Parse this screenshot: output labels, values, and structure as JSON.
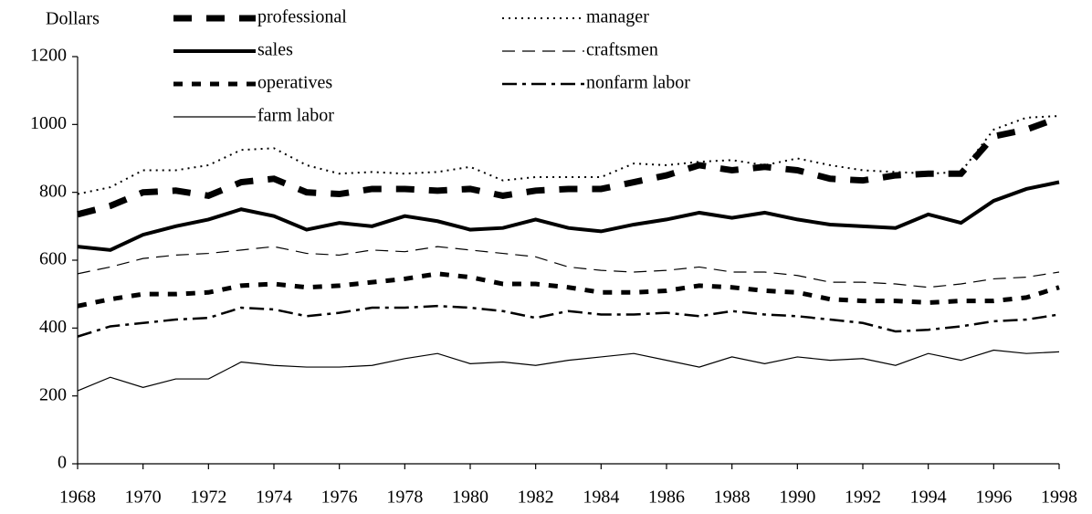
{
  "chart_data": {
    "type": "line",
    "y_label": "Dollars",
    "x": [
      1968,
      1969,
      1970,
      1971,
      1972,
      1973,
      1974,
      1975,
      1976,
      1977,
      1978,
      1979,
      1980,
      1981,
      1982,
      1983,
      1984,
      1985,
      1986,
      1987,
      1988,
      1989,
      1990,
      1991,
      1992,
      1993,
      1994,
      1995,
      1996,
      1997,
      1998
    ],
    "xlim": [
      1968,
      1998
    ],
    "xticks": [
      1968,
      1970,
      1972,
      1974,
      1976,
      1978,
      1980,
      1982,
      1984,
      1986,
      1988,
      1990,
      1992,
      1994,
      1996,
      1998
    ],
    "ylim": [
      0,
      1200
    ],
    "yticks": [
      0,
      200,
      400,
      600,
      800,
      1000,
      1200
    ],
    "grid": false,
    "series": [
      {
        "name": "professional",
        "color": "#000",
        "width": 7,
        "dash": "20 16",
        "values": [
          735,
          760,
          800,
          805,
          790,
          830,
          840,
          800,
          795,
          810,
          810,
          805,
          810,
          790,
          805,
          810,
          810,
          830,
          850,
          880,
          865,
          875,
          865,
          840,
          835,
          850,
          855,
          855,
          965,
          985,
          1020
        ]
      },
      {
        "name": "manager",
        "color": "#000",
        "width": 2,
        "dash": "2 5",
        "values": [
          795,
          815,
          865,
          865,
          880,
          925,
          930,
          880,
          855,
          860,
          855,
          860,
          875,
          835,
          845,
          845,
          845,
          885,
          880,
          890,
          895,
          880,
          900,
          880,
          865,
          860,
          855,
          860,
          985,
          1020,
          1025
        ]
      },
      {
        "name": "sales",
        "color": "#000",
        "width": 4,
        "dash": "none",
        "values": [
          640,
          630,
          675,
          700,
          720,
          750,
          730,
          690,
          710,
          700,
          730,
          715,
          690,
          695,
          720,
          695,
          685,
          705,
          720,
          740,
          725,
          740,
          720,
          705,
          700,
          695,
          735,
          710,
          775,
          810,
          830
        ]
      },
      {
        "name": "craftsmen",
        "color": "#000",
        "width": 1.2,
        "dash": "14 8",
        "values": [
          560,
          580,
          605,
          615,
          620,
          630,
          640,
          620,
          615,
          630,
          625,
          640,
          630,
          620,
          610,
          580,
          570,
          565,
          570,
          580,
          565,
          565,
          555,
          535,
          535,
          530,
          520,
          530,
          545,
          550,
          565
        ]
      },
      {
        "name": "operatives",
        "color": "#000",
        "width": 5,
        "dash": "10 10",
        "values": [
          465,
          485,
          500,
          500,
          505,
          525,
          530,
          520,
          525,
          535,
          545,
          560,
          550,
          530,
          530,
          520,
          505,
          505,
          510,
          525,
          520,
          510,
          505,
          485,
          480,
          480,
          475,
          480,
          480,
          490,
          520
        ]
      },
      {
        "name": "nonfarm labor",
        "color": "#000",
        "width": 2.5,
        "dash": "16 6 4 6",
        "values": [
          375,
          405,
          415,
          425,
          430,
          460,
          455,
          435,
          445,
          460,
          460,
          465,
          460,
          450,
          430,
          450,
          440,
          440,
          445,
          435,
          450,
          440,
          435,
          425,
          415,
          390,
          395,
          405,
          420,
          425,
          440
        ]
      },
      {
        "name": "farm labor",
        "color": "#000",
        "width": 1.2,
        "dash": "none",
        "values": [
          215,
          255,
          225,
          250,
          250,
          300,
          290,
          285,
          285,
          290,
          310,
          325,
          295,
          300,
          290,
          305,
          315,
          325,
          305,
          285,
          315,
          295,
          315,
          305,
          310,
          290,
          325,
          305,
          335,
          325,
          330
        ]
      }
    ]
  }
}
